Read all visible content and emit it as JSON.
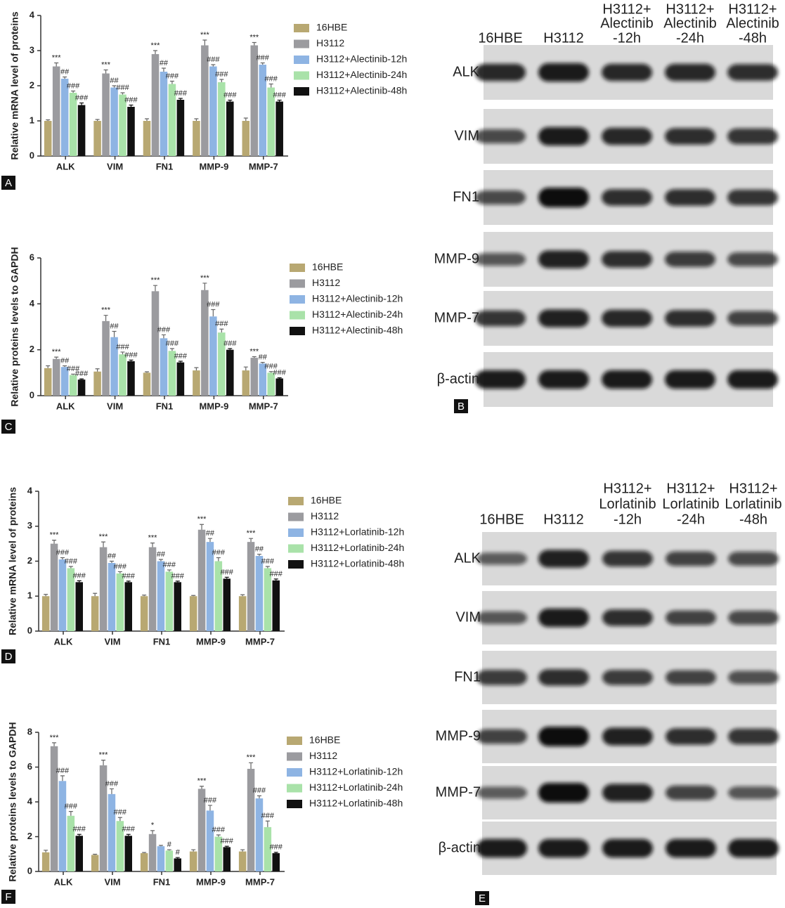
{
  "chart_data": [
    {
      "type": "bar",
      "panel_label": "A",
      "ylabel": "Relative mRNA level of proteins",
      "categories": [
        "ALK",
        "VIM",
        "FN1",
        "MMP-9",
        "MMP-7"
      ],
      "ylim": [
        0,
        4
      ],
      "yticks": [
        0,
        1,
        2,
        3,
        4
      ],
      "series": [
        {
          "name": "16HBE",
          "color": "#b8a872",
          "values": [
            1.0,
            1.0,
            1.0,
            1.0,
            1.0
          ],
          "errors": [
            0.03,
            0.04,
            0.06,
            0.06,
            0.08
          ]
        },
        {
          "name": "H3112",
          "color": "#9b9b9f",
          "values": [
            2.55,
            2.35,
            2.9,
            3.15,
            3.15
          ],
          "errors": [
            0.1,
            0.1,
            0.1,
            0.15,
            0.08
          ],
          "annotations": [
            "***",
            "***",
            "***",
            "***",
            "***"
          ]
        },
        {
          "name": "H3112+Alectinib-12h",
          "color": "#8eb4e3",
          "values": [
            2.2,
            1.95,
            2.4,
            2.55,
            2.6
          ],
          "errors": [
            0.05,
            0.05,
            0.1,
            0.05,
            0.05
          ],
          "annotations": [
            "##",
            "##",
            "##",
            "###",
            "###"
          ]
        },
        {
          "name": "H3112+Alectinib-24h",
          "color": "#a9e2a9",
          "values": [
            1.8,
            1.75,
            2.05,
            2.1,
            1.95
          ],
          "errors": [
            0.05,
            0.05,
            0.08,
            0.08,
            0.1
          ],
          "annotations": [
            "###",
            "###",
            "###",
            "###",
            "###"
          ]
        },
        {
          "name": "H3112+Alectinib-48h",
          "color": "#111111",
          "values": [
            1.45,
            1.4,
            1.6,
            1.55,
            1.55
          ],
          "errors": [
            0.06,
            0.05,
            0.04,
            0.04,
            0.04
          ],
          "annotations": [
            "###",
            "###",
            "###",
            "###",
            "###"
          ]
        }
      ]
    },
    {
      "type": "bar",
      "panel_label": "C",
      "ylabel": "Relative  proteins levels to GAPDH",
      "categories": [
        "ALK",
        "VIM",
        "FN1",
        "MMP-9",
        "MMP-7"
      ],
      "ylim": [
        0,
        6
      ],
      "yticks": [
        0,
        2,
        4,
        6
      ],
      "series": [
        {
          "name": "16HBE",
          "color": "#b8a872",
          "values": [
            1.2,
            1.05,
            1.0,
            1.1,
            1.1
          ],
          "errors": [
            0.1,
            0.12,
            0.04,
            0.12,
            0.15
          ]
        },
        {
          "name": "H3112",
          "color": "#9b9b9f",
          "values": [
            1.6,
            3.25,
            4.55,
            4.6,
            1.65
          ],
          "errors": [
            0.08,
            0.25,
            0.25,
            0.3,
            0.05
          ],
          "annotations": [
            "***",
            "***",
            "***",
            "***",
            "***"
          ]
        },
        {
          "name": "H3112+Alectinib-12h",
          "color": "#8eb4e3",
          "values": [
            1.25,
            2.55,
            2.5,
            3.45,
            1.4
          ],
          "errors": [
            0.05,
            0.25,
            0.15,
            0.3,
            0.05
          ],
          "annotations": [
            "##",
            "##",
            "###",
            "###",
            "##"
          ]
        },
        {
          "name": "H3112+Alectinib-24h",
          "color": "#a9e2a9",
          "values": [
            0.9,
            1.8,
            1.95,
            2.75,
            1.0
          ],
          "errors": [
            0.04,
            0.1,
            0.1,
            0.15,
            0.05
          ],
          "annotations": [
            "###",
            "###",
            "###",
            "###",
            "###"
          ]
        },
        {
          "name": "H3112+Alectinib-48h",
          "color": "#111111",
          "values": [
            0.7,
            1.5,
            1.45,
            2.0,
            0.75
          ],
          "errors": [
            0.03,
            0.05,
            0.05,
            0.05,
            0.03
          ],
          "annotations": [
            "###",
            "###",
            "###",
            "###",
            "###"
          ]
        }
      ]
    },
    {
      "type": "bar",
      "panel_label": "D",
      "ylabel": "Relative mRNA level of proteins",
      "categories": [
        "ALK",
        "VIM",
        "FN1",
        "MMP-9",
        "MMP-7"
      ],
      "ylim": [
        0,
        4
      ],
      "yticks": [
        0,
        1,
        2,
        3,
        4
      ],
      "series": [
        {
          "name": "16HBE",
          "color": "#b8a872",
          "values": [
            1.0,
            1.0,
            1.0,
            1.0,
            1.0
          ],
          "errors": [
            0.05,
            0.08,
            0.03,
            0.02,
            0.04
          ]
        },
        {
          "name": "H3112",
          "color": "#9b9b9f",
          "values": [
            2.5,
            2.4,
            2.4,
            2.9,
            2.55
          ],
          "errors": [
            0.1,
            0.15,
            0.12,
            0.15,
            0.1
          ],
          "annotations": [
            "***",
            "***",
            "***",
            "***",
            "***"
          ]
        },
        {
          "name": "H3112+Lorlatinib-12h",
          "color": "#8eb4e3",
          "values": [
            2.05,
            1.95,
            2.0,
            2.55,
            2.15
          ],
          "errors": [
            0.05,
            0.05,
            0.05,
            0.1,
            0.05
          ],
          "annotations": [
            "###",
            "##",
            "##",
            "##",
            "##"
          ]
        },
        {
          "name": "H3112+Lorlatinib-24h",
          "color": "#a9e2a9",
          "values": [
            1.8,
            1.65,
            1.7,
            2.0,
            1.8
          ],
          "errors": [
            0.05,
            0.05,
            0.05,
            0.1,
            0.05
          ],
          "annotations": [
            "###",
            "###",
            "###",
            "###",
            "###"
          ]
        },
        {
          "name": "H3112+Lorlatinib-48h",
          "color": "#111111",
          "values": [
            1.4,
            1.4,
            1.4,
            1.5,
            1.45
          ],
          "errors": [
            0.04,
            0.03,
            0.03,
            0.04,
            0.04
          ],
          "annotations": [
            "###",
            "###",
            "###",
            "###",
            "###"
          ]
        }
      ]
    },
    {
      "type": "bar",
      "panel_label": "F",
      "ylabel": "Relative  proteins levels to GAPDH",
      "categories": [
        "ALK",
        "VIM",
        "FN1",
        "MMP-9",
        "MMP-7"
      ],
      "ylim": [
        0,
        8
      ],
      "yticks": [
        0,
        2,
        4,
        6,
        8
      ],
      "series": [
        {
          "name": "16HBE",
          "color": "#b8a872",
          "values": [
            1.1,
            0.95,
            1.05,
            1.15,
            1.15
          ],
          "errors": [
            0.12,
            0.04,
            0.04,
            0.1,
            0.1
          ]
        },
        {
          "name": "H3112",
          "color": "#9b9b9f",
          "values": [
            7.2,
            6.1,
            2.15,
            4.75,
            5.9
          ],
          "errors": [
            0.2,
            0.3,
            0.2,
            0.15,
            0.35
          ],
          "annotations": [
            "***",
            "***",
            "*",
            "***",
            "***"
          ]
        },
        {
          "name": "H3112+Lorlatinib-12h",
          "color": "#8eb4e3",
          "values": [
            5.2,
            4.45,
            1.45,
            3.5,
            4.2
          ],
          "errors": [
            0.3,
            0.3,
            0.05,
            0.3,
            0.15
          ],
          "annotations": [
            "###",
            "###",
            null,
            "###",
            "###"
          ]
        },
        {
          "name": "H3112+Lorlatinib-24h",
          "color": "#a9e2a9",
          "values": [
            3.2,
            2.9,
            1.2,
            2.0,
            2.55
          ],
          "errors": [
            0.25,
            0.2,
            0.05,
            0.1,
            0.35
          ],
          "annotations": [
            "###",
            "###",
            "#",
            "###",
            "###"
          ]
        },
        {
          "name": "H3112+Lorlatinib-48h",
          "color": "#111111",
          "values": [
            2.05,
            2.05,
            0.75,
            1.4,
            1.05
          ],
          "errors": [
            0.08,
            0.08,
            0.05,
            0.05,
            0.05
          ],
          "annotations": [
            "###",
            "###",
            "#",
            "###",
            "###"
          ]
        }
      ]
    }
  ],
  "blots": [
    {
      "panel_label": "B",
      "columns": [
        [
          "16HBE"
        ],
        [
          "H3112"
        ],
        [
          "H3112+",
          "Alectinib",
          "-12h"
        ],
        [
          "H3112+",
          "Alectinib",
          "-24h"
        ],
        [
          "H3112+",
          "Alectinib",
          "-48h"
        ]
      ],
      "rows": [
        "ALK",
        "VIM",
        "FN1",
        "MMP-9",
        "MMP-7",
        "β-actin"
      ]
    },
    {
      "panel_label": "E",
      "columns": [
        [
          "16HBE"
        ],
        [
          "H3112"
        ],
        [
          "H3112+",
          "Lorlatinib",
          "-12h"
        ],
        [
          "H3112+",
          "Lorlatinib",
          "-24h"
        ],
        [
          "H3112+",
          "Lorlatinib",
          "-48h"
        ]
      ],
      "rows": [
        "ALK",
        "VIM",
        "FN1",
        "MMP-9",
        "MMP-7",
        "β-actin"
      ]
    }
  ]
}
